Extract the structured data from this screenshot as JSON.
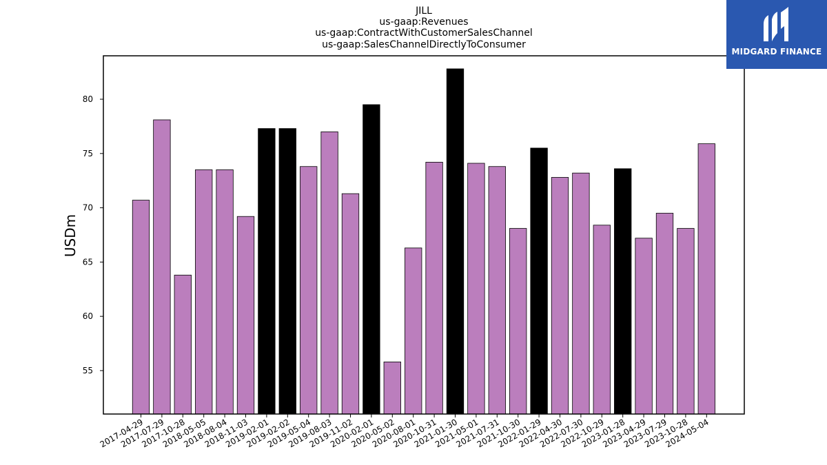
{
  "chart_data": {
    "type": "bar",
    "title_lines": [
      "JILL",
      "us-gaap:Revenues",
      "us-gaap:ContractWithCustomerSalesChannel",
      "us-gaap:SalesChannelDirectlyToConsumer"
    ],
    "ylabel": "USDm",
    "xlabel": "",
    "ylim": [
      51,
      84
    ],
    "yticks": [
      55,
      60,
      65,
      70,
      75,
      80
    ],
    "categories": [
      "2017-04-29",
      "2017-07-29",
      "2017-10-28",
      "2018-05-05",
      "2018-08-04",
      "2018-11-03",
      "2019-02-01",
      "2019-02-02",
      "2019-05-04",
      "2019-08-03",
      "2019-11-02",
      "2020-02-01",
      "2020-05-02",
      "2020-08-01",
      "2020-10-31",
      "2021-01-30",
      "2021-05-01",
      "2021-07-31",
      "2021-10-30",
      "2022-01-29",
      "2022-04-30",
      "2022-07-30",
      "2022-10-29",
      "2023-01-28",
      "2023-04-29",
      "2023-07-29",
      "2023-10-28",
      "2024-05-04"
    ],
    "values": [
      70.7,
      78.1,
      63.8,
      73.5,
      73.5,
      69.2,
      77.3,
      77.3,
      73.8,
      77.0,
      71.3,
      79.5,
      55.8,
      66.3,
      74.2,
      82.8,
      74.1,
      73.8,
      68.1,
      75.5,
      72.8,
      73.2,
      68.4,
      73.6,
      67.2,
      69.5,
      68.1,
      75.9
    ],
    "highlighted": [
      false,
      false,
      false,
      false,
      false,
      false,
      true,
      true,
      false,
      false,
      false,
      true,
      false,
      false,
      false,
      true,
      false,
      false,
      false,
      true,
      false,
      false,
      false,
      true,
      false,
      false,
      false,
      false
    ],
    "colors": {
      "bar": "#bb7ebd",
      "highlight": "#000000",
      "edge": "#000000"
    },
    "grid": false
  },
  "logo": {
    "text": "MIDGARD FINANCE",
    "background": "#2a58b0"
  }
}
